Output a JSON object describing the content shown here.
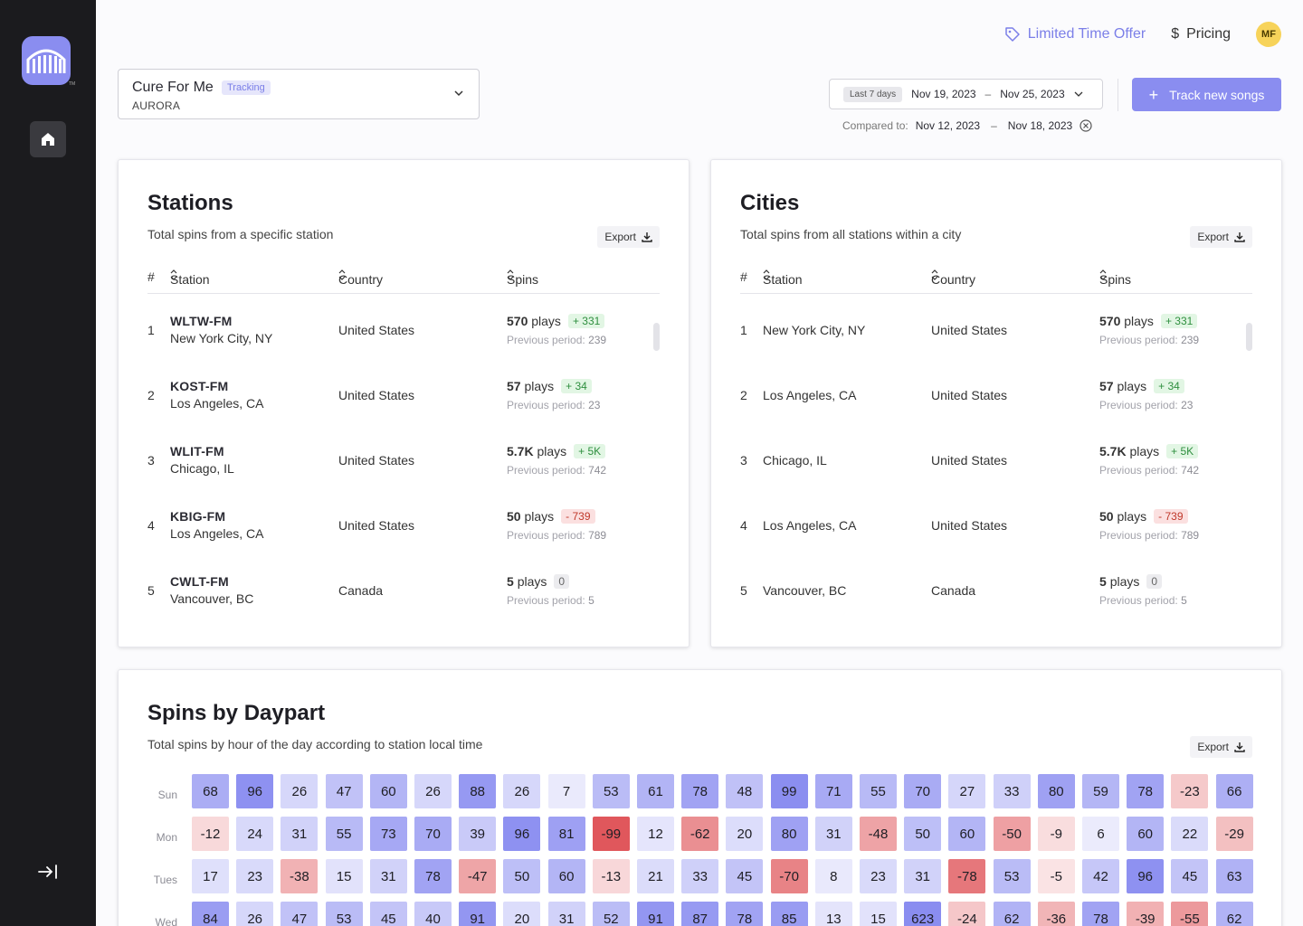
{
  "header": {
    "offer_label": "Limited Time Offer",
    "pricing_label": "Pricing",
    "avatar_initials": "MF"
  },
  "song": {
    "title": "Cure For Me",
    "badge": "Tracking",
    "artist": "AURORA"
  },
  "date_range": {
    "preset": "Last 7 days",
    "start": "Nov 19, 2023",
    "end": "Nov 25, 2023",
    "separator": "–",
    "compare_label": "Compared to:",
    "compare_start": "Nov 12, 2023",
    "compare_end": "Nov 18, 2023"
  },
  "track_button_label": "Track new songs",
  "stations": {
    "title": "Stations",
    "subtitle": "Total spins from a specific station",
    "export_label": "Export",
    "columns": {
      "num": "#",
      "station": "Station",
      "country": "Country",
      "spins": "Spins"
    },
    "rows": [
      {
        "num": "1",
        "name": "WLTW-FM",
        "city": "New York City, NY",
        "country": "United States",
        "plays": "570",
        "plays_suffix": "plays",
        "delta": "+ 331",
        "delta_type": "up",
        "prev_label": "Previous period:",
        "prev": "239"
      },
      {
        "num": "2",
        "name": "KOST-FM",
        "city": "Los Angeles, CA",
        "country": "United States",
        "plays": "57",
        "plays_suffix": "plays",
        "delta": "+ 34",
        "delta_type": "up",
        "prev_label": "Previous period:",
        "prev": "23"
      },
      {
        "num": "3",
        "name": "WLIT-FM",
        "city": "Chicago, IL",
        "country": "United States",
        "plays": "5.7K",
        "plays_suffix": "plays",
        "delta": "+ 5K",
        "delta_type": "up",
        "prev_label": "Previous period:",
        "prev": "742"
      },
      {
        "num": "4",
        "name": "KBIG-FM",
        "city": "Los Angeles, CA",
        "country": "United States",
        "plays": "50",
        "plays_suffix": "plays",
        "delta": "- 739",
        "delta_type": "down",
        "prev_label": "Previous period:",
        "prev": "789"
      },
      {
        "num": "5",
        "name": "CWLT-FM",
        "city": "Vancouver, BC",
        "country": "Canada",
        "plays": "5",
        "plays_suffix": "plays",
        "delta": "0",
        "delta_type": "zero",
        "prev_label": "Previous period:",
        "prev": "5"
      }
    ]
  },
  "cities": {
    "title": "Cities",
    "subtitle": "Total spins from all stations within a city",
    "export_label": "Export",
    "columns": {
      "num": "#",
      "station": "Station",
      "country": "Country",
      "spins": "Spins"
    },
    "rows": [
      {
        "num": "1",
        "city": "New York City, NY",
        "country": "United States",
        "plays": "570",
        "plays_suffix": "plays",
        "delta": "+ 331",
        "delta_type": "up",
        "prev_label": "Previous period:",
        "prev": "239"
      },
      {
        "num": "2",
        "city": "Los Angeles, CA",
        "country": "United States",
        "plays": "57",
        "plays_suffix": "plays",
        "delta": "+ 34",
        "delta_type": "up",
        "prev_label": "Previous period:",
        "prev": "23"
      },
      {
        "num": "3",
        "city": "Chicago, IL",
        "country": "United States",
        "plays": "5.7K",
        "plays_suffix": "plays",
        "delta": "+ 5K",
        "delta_type": "up",
        "prev_label": "Previous period:",
        "prev": "742"
      },
      {
        "num": "4",
        "city": "Los Angeles, CA",
        "country": "United States",
        "plays": "50",
        "plays_suffix": "plays",
        "delta": "- 739",
        "delta_type": "down",
        "prev_label": "Previous period:",
        "prev": "789"
      },
      {
        "num": "5",
        "city": "Vancouver, BC",
        "country": "Canada",
        "plays": "5",
        "plays_suffix": "plays",
        "delta": "0",
        "delta_type": "zero",
        "prev_label": "Previous period:",
        "prev": "5"
      }
    ]
  },
  "daypart": {
    "title": "Spins by Daypart",
    "subtitle": "Total spins by hour of the day according to station local time",
    "export_label": "Export"
  },
  "chart_data": {
    "type": "heatmap",
    "rows": [
      "Sun",
      "Mon",
      "Tues",
      "Wed"
    ],
    "values": [
      [
        68,
        96,
        26,
        47,
        60,
        26,
        88,
        26,
        7,
        53,
        61,
        78,
        48,
        99,
        71,
        55,
        70,
        27,
        33,
        80,
        59,
        78,
        -23,
        66
      ],
      [
        -12,
        24,
        31,
        55,
        73,
        70,
        39,
        96,
        81,
        -99,
        12,
        -62,
        20,
        80,
        31,
        -48,
        50,
        60,
        -50,
        -9,
        6,
        60,
        22,
        -29
      ],
      [
        17,
        23,
        -38,
        15,
        31,
        78,
        -47,
        50,
        60,
        -13,
        21,
        33,
        45,
        -70,
        8,
        23,
        31,
        -78,
        53,
        -5,
        42,
        96,
        45,
        63
      ],
      [
        84,
        26,
        47,
        53,
        45,
        40,
        91,
        20,
        31,
        52,
        91,
        87,
        78,
        85,
        13,
        15,
        623,
        -24,
        62,
        -36,
        78,
        -39,
        -55,
        62
      ]
    ],
    "positive_color": "#8a8df0",
    "negative_color": "#e0565b"
  },
  "colors": {
    "accent": "#8a8df0",
    "sidebar": "#1b1b1e",
    "positive": "#2f8f3f",
    "negative": "#c0392b"
  }
}
